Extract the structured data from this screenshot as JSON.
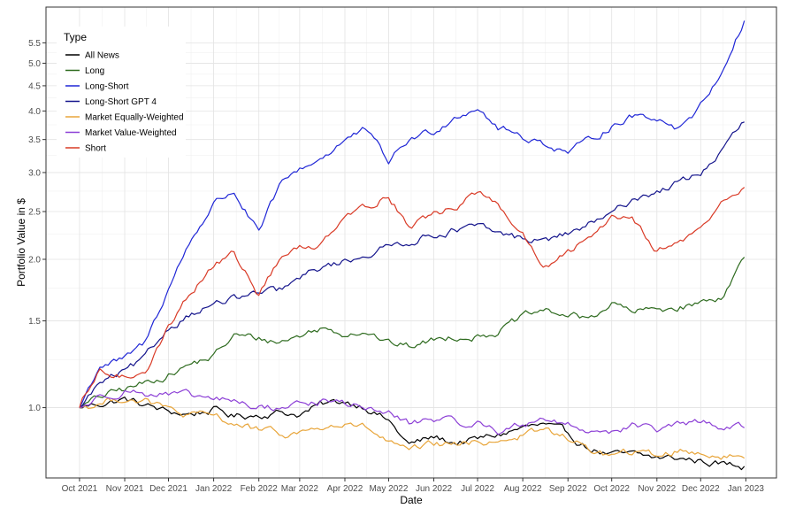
{
  "chart_data": {
    "type": "line",
    "xlabel": "Date",
    "ylabel": "Portfolio Value in $",
    "y_scale": "log",
    "ylim": [
      0.72,
      6.5
    ],
    "xlim": [
      "2021-09-08",
      "2023-01-22"
    ],
    "grid": true,
    "legend": {
      "title": "Type",
      "placement": "top-left"
    },
    "x_ticks": [
      {
        "date": "2021-10-01",
        "label": "Oct 2021"
      },
      {
        "date": "2021-11-01",
        "label": "Nov 2021"
      },
      {
        "date": "2021-12-01",
        "label": "Dec 2021"
      },
      {
        "date": "2022-01-01",
        "label": "Jan 2022"
      },
      {
        "date": "2022-02-01",
        "label": "Feb 2022"
      },
      {
        "date": "2022-03-01",
        "label": "Mar 2022"
      },
      {
        "date": "2022-04-01",
        "label": "Apr 2022"
      },
      {
        "date": "2022-05-01",
        "label": "May 2022"
      },
      {
        "date": "2022-06-01",
        "label": "Jun 2022"
      },
      {
        "date": "2022-07-01",
        "label": "Jul 2022"
      },
      {
        "date": "2022-08-01",
        "label": "Aug 2022"
      },
      {
        "date": "2022-09-01",
        "label": "Sep 2022"
      },
      {
        "date": "2022-10-01",
        "label": "Oct 2022"
      },
      {
        "date": "2022-11-01",
        "label": "Nov 2022"
      },
      {
        "date": "2022-12-01",
        "label": "Dec 2022"
      },
      {
        "date": "2023-01-01",
        "label": "Jan 2023"
      }
    ],
    "y_ticks": [
      {
        "value": 1.0,
        "label": "1.0"
      },
      {
        "value": 1.5,
        "label": "1.5"
      },
      {
        "value": 2.0,
        "label": "2.0"
      },
      {
        "value": 2.5,
        "label": "2.5"
      },
      {
        "value": 3.0,
        "label": "3.0"
      },
      {
        "value": 3.5,
        "label": "3.5"
      },
      {
        "value": 4.0,
        "label": "4.0"
      },
      {
        "value": 4.5,
        "label": "4.5"
      },
      {
        "value": 5.0,
        "label": "5.0"
      },
      {
        "value": 5.5,
        "label": "5.5"
      }
    ],
    "series": [
      {
        "name": "All News",
        "color": "#000000",
        "x": [
          "2021-10-01",
          "2021-10-15",
          "2021-11-01",
          "2021-11-15",
          "2021-12-01",
          "2021-12-15",
          "2022-01-01",
          "2022-01-15",
          "2022-02-01",
          "2022-02-15",
          "2022-03-01",
          "2022-03-15",
          "2022-04-01",
          "2022-04-15",
          "2022-05-01",
          "2022-05-15",
          "2022-06-01",
          "2022-06-15",
          "2022-07-01",
          "2022-07-15",
          "2022-08-01",
          "2022-08-15",
          "2022-09-01",
          "2022-09-15",
          "2022-10-01",
          "2022-10-15",
          "2022-11-01",
          "2022-11-15",
          "2022-12-01",
          "2022-12-15",
          "2022-12-31"
        ],
        "values": [
          1.0,
          1.02,
          1.04,
          1.01,
          0.98,
          0.97,
          0.99,
          0.96,
          0.97,
          0.98,
          0.97,
          1.01,
          1.03,
          1.01,
          0.94,
          0.84,
          0.87,
          0.85,
          0.86,
          0.88,
          0.91,
          0.92,
          0.88,
          0.83,
          0.8,
          0.8,
          0.79,
          0.79,
          0.78,
          0.77,
          0.76
        ]
      },
      {
        "name": "Long",
        "color": "#2e6b1f",
        "x": [
          "2021-10-01",
          "2021-10-15",
          "2021-11-01",
          "2021-11-15",
          "2021-12-01",
          "2021-12-15",
          "2022-01-01",
          "2022-01-15",
          "2022-02-01",
          "2022-02-15",
          "2022-03-01",
          "2022-03-15",
          "2022-04-01",
          "2022-04-15",
          "2022-05-01",
          "2022-05-15",
          "2022-06-01",
          "2022-06-15",
          "2022-07-01",
          "2022-07-15",
          "2022-08-01",
          "2022-08-15",
          "2022-09-01",
          "2022-09-15",
          "2022-10-01",
          "2022-10-15",
          "2022-11-01",
          "2022-11-15",
          "2022-12-01",
          "2022-12-15",
          "2022-12-31"
        ],
        "values": [
          1.0,
          1.05,
          1.09,
          1.12,
          1.17,
          1.22,
          1.27,
          1.4,
          1.38,
          1.36,
          1.4,
          1.45,
          1.42,
          1.44,
          1.35,
          1.33,
          1.37,
          1.4,
          1.4,
          1.43,
          1.52,
          1.57,
          1.54,
          1.51,
          1.63,
          1.56,
          1.58,
          1.6,
          1.63,
          1.68,
          2.02
        ]
      },
      {
        "name": "Long-Short",
        "color": "#1f26d6",
        "x": [
          "2021-10-01",
          "2021-10-15",
          "2021-11-01",
          "2021-11-15",
          "2021-12-01",
          "2021-12-15",
          "2022-01-01",
          "2022-01-15",
          "2022-02-01",
          "2022-02-15",
          "2022-03-01",
          "2022-03-15",
          "2022-04-01",
          "2022-04-15",
          "2022-05-01",
          "2022-05-15",
          "2022-06-01",
          "2022-06-15",
          "2022-07-01",
          "2022-07-15",
          "2022-08-01",
          "2022-08-15",
          "2022-09-01",
          "2022-09-15",
          "2022-10-01",
          "2022-10-15",
          "2022-11-01",
          "2022-11-15",
          "2022-12-01",
          "2022-12-15",
          "2022-12-31"
        ],
        "values": [
          1.0,
          1.22,
          1.25,
          1.35,
          1.75,
          2.15,
          2.6,
          2.75,
          2.25,
          2.8,
          3.05,
          3.2,
          3.5,
          3.65,
          3.15,
          3.5,
          3.65,
          3.9,
          4.1,
          3.7,
          3.55,
          3.45,
          3.3,
          3.45,
          3.75,
          3.9,
          3.9,
          3.7,
          4.1,
          4.8,
          6.1
        ]
      },
      {
        "name": "Long-Short GPT 4",
        "color": "#14148c",
        "x": [
          "2021-10-01",
          "2021-10-15",
          "2021-11-01",
          "2021-11-15",
          "2021-12-01",
          "2021-12-15",
          "2022-01-01",
          "2022-01-15",
          "2022-02-01",
          "2022-02-15",
          "2022-03-01",
          "2022-03-15",
          "2022-04-01",
          "2022-04-15",
          "2022-05-01",
          "2022-05-15",
          "2022-06-01",
          "2022-06-15",
          "2022-07-01",
          "2022-07-15",
          "2022-08-01",
          "2022-08-15",
          "2022-09-01",
          "2022-09-15",
          "2022-10-01",
          "2022-10-15",
          "2022-11-01",
          "2022-11-15",
          "2022-12-01",
          "2022-12-15",
          "2022-12-31"
        ],
        "values": [
          1.0,
          1.12,
          1.18,
          1.25,
          1.45,
          1.55,
          1.62,
          1.66,
          1.7,
          1.72,
          1.82,
          1.92,
          1.98,
          2.05,
          2.12,
          2.18,
          2.25,
          2.3,
          2.32,
          2.25,
          2.2,
          2.18,
          2.25,
          2.35,
          2.45,
          2.65,
          2.75,
          2.85,
          3.0,
          3.3,
          3.8
        ]
      },
      {
        "name": "Market Equally-Weighted",
        "color": "#e8a53a",
        "x": [
          "2021-10-01",
          "2021-10-15",
          "2021-11-01",
          "2021-11-15",
          "2021-12-01",
          "2021-12-15",
          "2022-01-01",
          "2022-01-15",
          "2022-02-01",
          "2022-02-15",
          "2022-03-01",
          "2022-03-15",
          "2022-04-01",
          "2022-04-15",
          "2022-05-01",
          "2022-05-15",
          "2022-06-01",
          "2022-06-15",
          "2022-07-01",
          "2022-07-15",
          "2022-08-01",
          "2022-08-15",
          "2022-09-01",
          "2022-09-15",
          "2022-10-01",
          "2022-10-15",
          "2022-11-01",
          "2022-11-15",
          "2022-12-01",
          "2022-12-15",
          "2022-12-31"
        ],
        "values": [
          1.0,
          1.02,
          1.05,
          1.03,
          0.99,
          0.96,
          0.96,
          0.93,
          0.9,
          0.88,
          0.89,
          0.91,
          0.92,
          0.91,
          0.85,
          0.81,
          0.84,
          0.84,
          0.85,
          0.86,
          0.88,
          0.9,
          0.87,
          0.82,
          0.8,
          0.81,
          0.8,
          0.82,
          0.81,
          0.8,
          0.79
        ]
      },
      {
        "name": "Market Value-Weighted",
        "color": "#8c3fd6",
        "x": [
          "2021-10-01",
          "2021-10-15",
          "2021-11-01",
          "2021-11-15",
          "2021-12-01",
          "2021-12-15",
          "2022-01-01",
          "2022-01-15",
          "2022-02-01",
          "2022-02-15",
          "2022-03-01",
          "2022-03-15",
          "2022-04-01",
          "2022-04-15",
          "2022-05-01",
          "2022-05-15",
          "2022-06-01",
          "2022-06-15",
          "2022-07-01",
          "2022-07-15",
          "2022-08-01",
          "2022-08-15",
          "2022-09-01",
          "2022-09-15",
          "2022-10-01",
          "2022-10-15",
          "2022-11-01",
          "2022-11-15",
          "2022-12-01",
          "2022-12-15",
          "2022-12-31"
        ],
        "values": [
          1.0,
          1.05,
          1.09,
          1.07,
          1.06,
          1.05,
          1.04,
          1.03,
          1.0,
          1.0,
          1.02,
          1.03,
          1.02,
          1.0,
          0.97,
          0.93,
          0.95,
          0.93,
          0.93,
          0.9,
          0.92,
          0.96,
          0.92,
          0.9,
          0.9,
          0.92,
          0.9,
          0.92,
          0.93,
          0.92,
          0.91
        ]
      },
      {
        "name": "Short",
        "color": "#d93a26",
        "x": [
          "2021-10-01",
          "2021-10-15",
          "2021-11-01",
          "2021-11-15",
          "2021-12-01",
          "2021-12-15",
          "2022-01-01",
          "2022-01-15",
          "2022-02-01",
          "2022-02-15",
          "2022-03-01",
          "2022-03-15",
          "2022-04-01",
          "2022-04-15",
          "2022-05-01",
          "2022-05-15",
          "2022-06-01",
          "2022-06-15",
          "2022-07-01",
          "2022-07-15",
          "2022-08-01",
          "2022-08-15",
          "2022-09-01",
          "2022-09-15",
          "2022-10-01",
          "2022-10-15",
          "2022-11-01",
          "2022-11-15",
          "2022-12-01",
          "2022-12-15",
          "2022-12-31"
        ],
        "values": [
          1.0,
          1.18,
          1.15,
          1.2,
          1.45,
          1.7,
          1.95,
          2.05,
          1.7,
          2.0,
          2.1,
          2.15,
          2.5,
          2.55,
          2.7,
          2.35,
          2.45,
          2.55,
          2.75,
          2.55,
          2.25,
          1.9,
          2.05,
          2.2,
          2.45,
          2.45,
          2.1,
          2.15,
          2.3,
          2.6,
          2.8
        ]
      }
    ]
  }
}
